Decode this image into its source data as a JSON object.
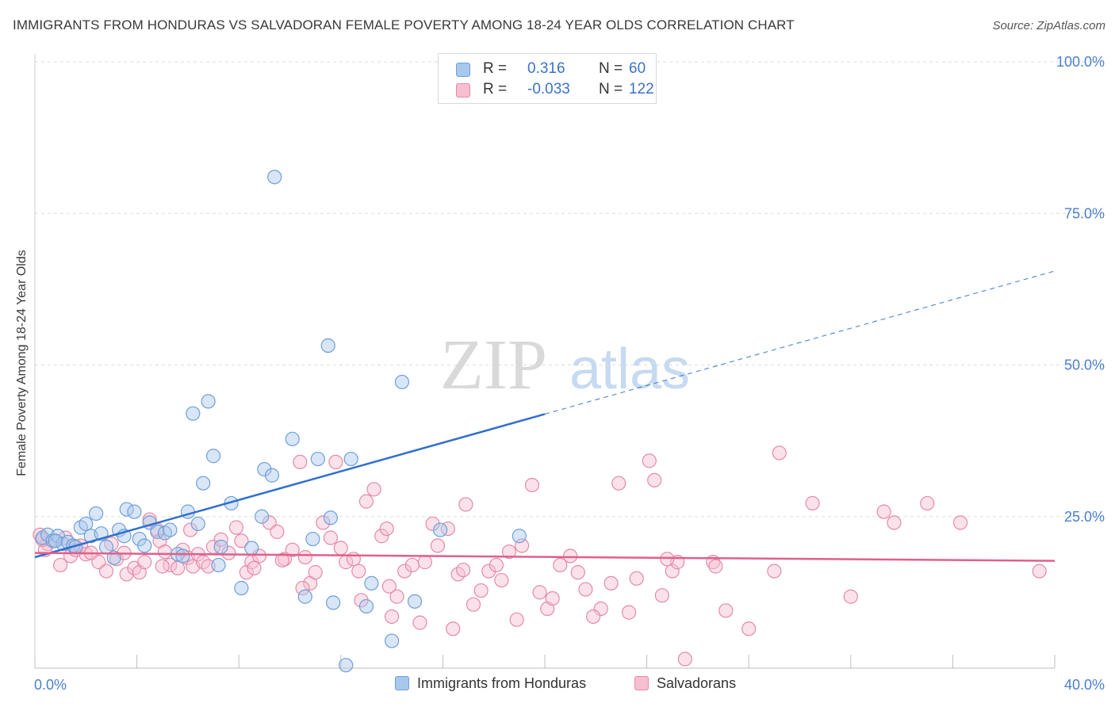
{
  "title": "IMMIGRANTS FROM HONDURAS VS SALVADORAN FEMALE POVERTY AMONG 18-24 YEAR OLDS CORRELATION CHART",
  "source": "Source: ZipAtlas.com",
  "watermark": {
    "zip": "ZIP",
    "atlas": "atlas"
  },
  "legend": {
    "rows": [
      {
        "r_label": "R =",
        "r_value": "0.316",
        "n_label": "N =",
        "n_value": "60",
        "color": "#a8c8ee",
        "border": "#6f9fd8"
      },
      {
        "r_label": "R =",
        "r_value": "-0.033",
        "n_label": "N =",
        "n_value": "122",
        "color": "#f7bfd0",
        "border": "#e58aa8"
      }
    ]
  },
  "chart_data": {
    "type": "scatter",
    "title": "IMMIGRANTS FROM HONDURAS VS SALVADORAN FEMALE POVERTY AMONG 18-24 YEAR OLDS CORRELATION CHART",
    "xlabel": "",
    "ylabel": "Female Poverty Among 18-24 Year Olds",
    "xlim": [
      0,
      40
    ],
    "ylim": [
      0,
      100
    ],
    "x_tick_labels": [
      "0.0%",
      "40.0%"
    ],
    "y_tick_labels": [
      "25.0%",
      "50.0%",
      "75.0%",
      "100.0%"
    ],
    "y_ticks": [
      25,
      50,
      75,
      100
    ],
    "grid": true,
    "legend_position": "top-center",
    "series": [
      {
        "name": "Immigrants from Honduras",
        "color": "#6f9fd8",
        "fill": "#a8c8ee",
        "points": [
          [
            0.3,
            21.5
          ],
          [
            0.5,
            22.0
          ],
          [
            0.7,
            21.0
          ],
          [
            0.9,
            21.8
          ],
          [
            1.1,
            20.5
          ],
          [
            1.3,
            20.8
          ],
          [
            1.5,
            20.2
          ],
          [
            1.8,
            23.2
          ],
          [
            2.0,
            23.8
          ],
          [
            2.2,
            21.8
          ],
          [
            2.4,
            25.5
          ],
          [
            2.6,
            22.2
          ],
          [
            2.8,
            20.0
          ],
          [
            3.1,
            18.2
          ],
          [
            3.3,
            22.8
          ],
          [
            3.5,
            21.8
          ],
          [
            3.6,
            26.2
          ],
          [
            3.9,
            25.8
          ],
          [
            4.1,
            21.3
          ],
          [
            4.3,
            20.2
          ],
          [
            4.5,
            24.0
          ],
          [
            4.8,
            22.5
          ],
          [
            5.1,
            22.3
          ],
          [
            5.3,
            22.8
          ],
          [
            5.6,
            18.8
          ],
          [
            5.8,
            18.5
          ],
          [
            6.0,
            25.8
          ],
          [
            6.2,
            42.0
          ],
          [
            6.4,
            23.8
          ],
          [
            6.6,
            30.5
          ],
          [
            6.8,
            44.0
          ],
          [
            7.0,
            35.0
          ],
          [
            7.2,
            17.0
          ],
          [
            7.3,
            20.0
          ],
          [
            7.7,
            27.2
          ],
          [
            8.1,
            13.2
          ],
          [
            8.5,
            19.8
          ],
          [
            8.9,
            25.0
          ],
          [
            9.0,
            32.8
          ],
          [
            9.3,
            31.8
          ],
          [
            9.4,
            81.0
          ],
          [
            10.1,
            37.8
          ],
          [
            10.6,
            11.8
          ],
          [
            10.9,
            21.3
          ],
          [
            11.1,
            34.5
          ],
          [
            11.5,
            53.2
          ],
          [
            11.6,
            24.8
          ],
          [
            11.7,
            10.8
          ],
          [
            12.4,
            34.5
          ],
          [
            12.2,
            0.5
          ],
          [
            13.0,
            10.2
          ],
          [
            13.2,
            14.0
          ],
          [
            14.0,
            4.5
          ],
          [
            14.4,
            47.2
          ],
          [
            14.9,
            11.0
          ],
          [
            15.9,
            22.8
          ],
          [
            17.8,
            100.0
          ],
          [
            19.0,
            21.8
          ],
          [
            0.8,
            21.0
          ],
          [
            1.6,
            20.0
          ]
        ]
      },
      {
        "name": "Salvadorans",
        "color": "#e58aa8",
        "fill": "#f7bfd0",
        "points": [
          [
            0.2,
            22.0
          ],
          [
            0.5,
            20.5
          ],
          [
            0.8,
            21.0
          ],
          [
            1.0,
            17.0
          ],
          [
            1.2,
            21.5
          ],
          [
            1.4,
            18.5
          ],
          [
            1.6,
            19.5
          ],
          [
            1.8,
            20.2
          ],
          [
            2.0,
            18.8
          ],
          [
            2.2,
            19.0
          ],
          [
            2.5,
            17.5
          ],
          [
            2.8,
            16.0
          ],
          [
            3.0,
            20.5
          ],
          [
            3.2,
            18.0
          ],
          [
            3.5,
            19.0
          ],
          [
            3.6,
            15.5
          ],
          [
            3.9,
            16.5
          ],
          [
            4.1,
            15.8
          ],
          [
            4.3,
            17.5
          ],
          [
            4.5,
            24.5
          ],
          [
            4.8,
            22.8
          ],
          [
            4.9,
            21.0
          ],
          [
            5.1,
            19.2
          ],
          [
            5.3,
            17.0
          ],
          [
            5.6,
            16.5
          ],
          [
            5.8,
            19.5
          ],
          [
            6.0,
            18.2
          ],
          [
            6.1,
            22.8
          ],
          [
            6.2,
            16.8
          ],
          [
            6.4,
            18.8
          ],
          [
            6.6,
            17.5
          ],
          [
            6.8,
            16.8
          ],
          [
            7.0,
            20.0
          ],
          [
            7.3,
            21.2
          ],
          [
            7.6,
            19.0
          ],
          [
            7.9,
            23.2
          ],
          [
            8.1,
            21.0
          ],
          [
            8.3,
            15.8
          ],
          [
            8.5,
            17.5
          ],
          [
            8.8,
            18.5
          ],
          [
            9.2,
            24.0
          ],
          [
            9.5,
            22.5
          ],
          [
            9.8,
            18.0
          ],
          [
            10.1,
            19.5
          ],
          [
            10.4,
            34.0
          ],
          [
            10.6,
            18.3
          ],
          [
            10.8,
            14.0
          ],
          [
            11.0,
            15.8
          ],
          [
            11.3,
            24.0
          ],
          [
            11.6,
            21.5
          ],
          [
            11.8,
            34.0
          ],
          [
            12.0,
            19.8
          ],
          [
            12.2,
            17.5
          ],
          [
            12.5,
            18.0
          ],
          [
            12.8,
            11.2
          ],
          [
            13.0,
            27.5
          ],
          [
            13.3,
            29.5
          ],
          [
            13.6,
            21.8
          ],
          [
            13.8,
            23.0
          ],
          [
            14.0,
            8.5
          ],
          [
            14.2,
            11.8
          ],
          [
            14.5,
            16.0
          ],
          [
            14.8,
            17.0
          ],
          [
            15.1,
            7.5
          ],
          [
            15.3,
            17.5
          ],
          [
            15.6,
            23.8
          ],
          [
            15.8,
            20.2
          ],
          [
            16.2,
            23.0
          ],
          [
            16.4,
            6.5
          ],
          [
            16.6,
            15.5
          ],
          [
            16.9,
            27.0
          ],
          [
            17.2,
            10.5
          ],
          [
            17.5,
            12.8
          ],
          [
            17.8,
            16.0
          ],
          [
            18.1,
            17.0
          ],
          [
            18.6,
            19.2
          ],
          [
            18.9,
            8.0
          ],
          [
            19.1,
            20.2
          ],
          [
            19.5,
            30.2
          ],
          [
            19.8,
            12.5
          ],
          [
            20.1,
            9.8
          ],
          [
            20.3,
            11.5
          ],
          [
            20.6,
            17.0
          ],
          [
            21.0,
            18.5
          ],
          [
            21.3,
            15.8
          ],
          [
            21.6,
            13.0
          ],
          [
            22.2,
            9.8
          ],
          [
            22.6,
            14.0
          ],
          [
            22.9,
            30.5
          ],
          [
            23.3,
            9.2
          ],
          [
            23.6,
            14.8
          ],
          [
            24.1,
            34.2
          ],
          [
            24.3,
            31.0
          ],
          [
            24.6,
            12.0
          ],
          [
            25.0,
            16.0
          ],
          [
            25.2,
            17.5
          ],
          [
            26.6,
            17.5
          ],
          [
            26.7,
            16.8
          ],
          [
            27.1,
            9.5
          ],
          [
            28.0,
            6.5
          ],
          [
            29.0,
            16.0
          ],
          [
            29.2,
            35.5
          ],
          [
            30.5,
            27.2
          ],
          [
            32.0,
            11.8
          ],
          [
            33.3,
            25.8
          ],
          [
            33.7,
            24.0
          ],
          [
            35.0,
            27.2
          ],
          [
            36.3,
            24.0
          ],
          [
            39.4,
            16.0
          ],
          [
            25.5,
            1.5
          ],
          [
            24.8,
            18.0
          ],
          [
            5.0,
            16.8
          ],
          [
            8.6,
            16.5
          ],
          [
            9.7,
            17.8
          ],
          [
            10.5,
            13.2
          ],
          [
            12.7,
            16.0
          ],
          [
            13.9,
            13.5
          ],
          [
            16.8,
            16.2
          ],
          [
            18.3,
            14.5
          ],
          [
            21.9,
            8.5
          ],
          [
            0.4,
            19.5
          ],
          [
            0.3,
            21.2
          ]
        ]
      }
    ],
    "trend_lines": [
      {
        "series": "Immigrants from Honduras",
        "x": [
          0,
          40
        ],
        "y": [
          18.3,
          65.5
        ],
        "solid_until_x": 20
      },
      {
        "series": "Salvadorans",
        "x": [
          0,
          40
        ],
        "y": [
          19.0,
          17.7
        ]
      }
    ]
  }
}
